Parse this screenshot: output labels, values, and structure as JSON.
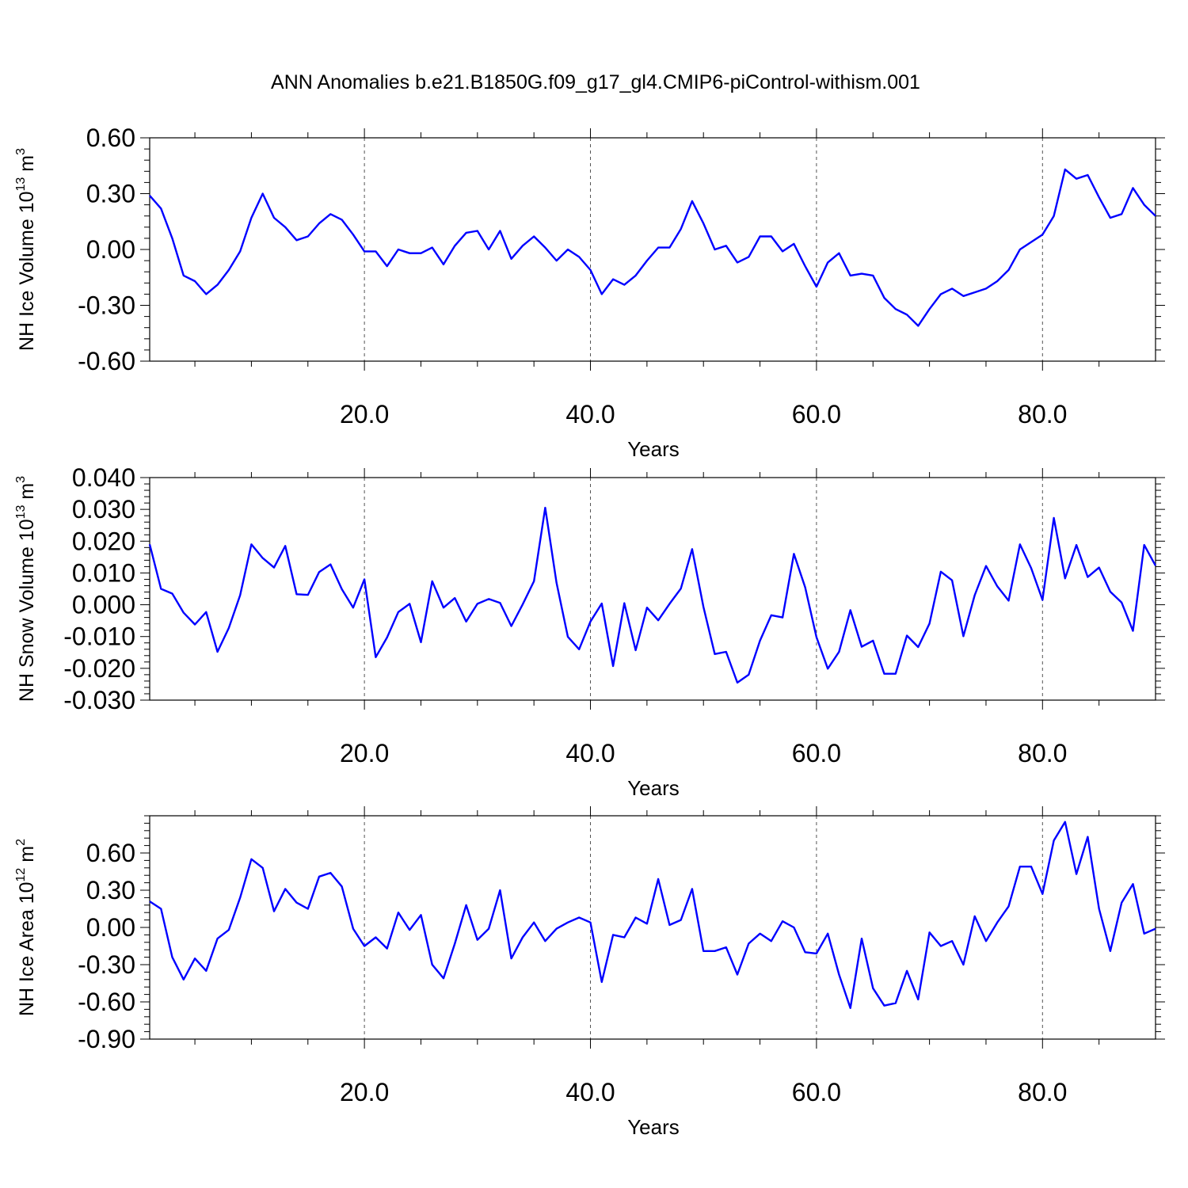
{
  "title": "ANN Anomalies b.e21.B1850G.f09_g17_gl4.CMIP6-piControl-withism.001",
  "colors": {
    "line": "#0000ff",
    "axis": "#000000",
    "grid": "#555555"
  },
  "chart_data": [
    {
      "type": "line",
      "ylabel": {
        "main": "NH Ice Volume 10",
        "sup": "13",
        "tail": " m",
        "unit_sup": "3"
      },
      "xlabel": "Years",
      "xlim": [
        1,
        90
      ],
      "ylim": [
        -0.6,
        0.6
      ],
      "xticks": [
        20,
        40,
        60,
        80
      ],
      "xtick_labels": [
        "20.0",
        "40.0",
        "60.0",
        "80.0"
      ],
      "yticks": [
        -0.6,
        -0.3,
        0.0,
        0.3,
        0.6
      ],
      "ytick_labels": [
        "-0.60",
        "-0.30",
        "0.00",
        "0.30",
        "0.60"
      ],
      "grid": "dashed vertical at major x ticks",
      "x": [
        1,
        2,
        3,
        4,
        5,
        6,
        7,
        8,
        9,
        10,
        11,
        12,
        13,
        14,
        15,
        16,
        17,
        18,
        19,
        20,
        21,
        22,
        23,
        24,
        25,
        26,
        27,
        28,
        29,
        30,
        31,
        32,
        33,
        34,
        35,
        36,
        37,
        38,
        39,
        40,
        41,
        42,
        43,
        44,
        45,
        46,
        47,
        48,
        49,
        50,
        51,
        52,
        53,
        54,
        55,
        56,
        57,
        58,
        59,
        60,
        61,
        62,
        63,
        64,
        65,
        66,
        67,
        68,
        69,
        70,
        71,
        72,
        73,
        74,
        75,
        76,
        77,
        78,
        79,
        80,
        81,
        82,
        83,
        84,
        85,
        86,
        87,
        88,
        89,
        90
      ],
      "y": [
        0.29,
        0.22,
        0.06,
        -0.14,
        -0.17,
        -0.24,
        -0.19,
        -0.11,
        -0.01,
        0.17,
        0.3,
        0.17,
        0.12,
        0.05,
        0.07,
        0.14,
        0.19,
        0.16,
        0.08,
        -0.01,
        -0.01,
        -0.09,
        0.0,
        -0.02,
        -0.02,
        0.01,
        -0.08,
        0.02,
        0.09,
        0.1,
        0.0,
        0.1,
        -0.05,
        0.02,
        0.07,
        0.01,
        -0.06,
        0.0,
        -0.04,
        -0.11,
        -0.24,
        -0.16,
        -0.19,
        -0.14,
        -0.06,
        0.01,
        0.01,
        0.11,
        0.26,
        0.14,
        0.0,
        0.02,
        -0.07,
        -0.04,
        0.07,
        0.07,
        -0.01,
        0.03,
        -0.09,
        -0.2,
        -0.07,
        -0.02,
        -0.14,
        -0.13,
        -0.14,
        -0.26,
        -0.32,
        -0.35,
        -0.41,
        -0.32,
        -0.24,
        -0.21,
        -0.25,
        -0.23,
        -0.21,
        -0.17,
        -0.11,
        0.0,
        0.04,
        0.08,
        0.18,
        0.43,
        0.38,
        0.4,
        0.28,
        0.17,
        0.19,
        0.33,
        0.24,
        0.18
      ]
    },
    {
      "type": "line",
      "ylabel": {
        "main": "NH Snow Volume 10",
        "sup": "13",
        "tail": " m",
        "unit_sup": "3"
      },
      "xlabel": "Years",
      "xlim": [
        1,
        90
      ],
      "ylim": [
        -0.03,
        0.04
      ],
      "xticks": [
        20,
        40,
        60,
        80
      ],
      "xtick_labels": [
        "20.0",
        "40.0",
        "60.0",
        "80.0"
      ],
      "yticks": [
        -0.03,
        -0.02,
        -0.01,
        0.0,
        0.01,
        0.02,
        0.03,
        0.04
      ],
      "ytick_labels": [
        "-0.030",
        "-0.020",
        "-0.010",
        "0.000",
        "0.010",
        "0.020",
        "0.030",
        "0.040"
      ],
      "grid": "dashed vertical at major x ticks",
      "x": [
        1,
        2,
        3,
        4,
        5,
        6,
        7,
        8,
        9,
        10,
        11,
        12,
        13,
        14,
        15,
        16,
        17,
        18,
        19,
        20,
        21,
        22,
        23,
        24,
        25,
        26,
        27,
        28,
        29,
        30,
        31,
        32,
        33,
        34,
        35,
        36,
        37,
        38,
        39,
        40,
        41,
        42,
        43,
        44,
        45,
        46,
        47,
        48,
        49,
        50,
        51,
        52,
        53,
        54,
        55,
        56,
        57,
        58,
        59,
        60,
        61,
        62,
        63,
        64,
        65,
        66,
        67,
        68,
        69,
        70,
        71,
        72,
        73,
        74,
        75,
        76,
        77,
        78,
        79,
        80,
        81,
        82,
        83,
        84,
        85,
        86,
        87,
        88,
        89,
        90
      ],
      "y": [
        0.019,
        0.005,
        0.0035,
        -0.0025,
        -0.0062,
        -0.0023,
        -0.0148,
        -0.0073,
        0.003,
        0.019,
        0.0147,
        0.0117,
        0.0185,
        0.0033,
        0.0031,
        0.0103,
        0.0127,
        0.0049,
        -0.0009,
        0.008,
        -0.0165,
        -0.0103,
        -0.0023,
        0.0003,
        -0.0118,
        0.0074,
        -0.0009,
        0.0021,
        -0.0053,
        0.0003,
        0.0018,
        0.0006,
        -0.0067,
        0.0001,
        0.0074,
        0.0305,
        0.0069,
        -0.0101,
        -0.014,
        -0.0053,
        0.0004,
        -0.0193,
        0.0005,
        -0.0143,
        -0.0009,
        -0.0049,
        0.0003,
        0.0051,
        0.0175,
        -0.0007,
        -0.0155,
        -0.0148,
        -0.0245,
        -0.022,
        -0.0113,
        -0.0033,
        -0.004,
        0.016,
        0.0055,
        -0.0102,
        -0.0201,
        -0.0148,
        -0.0017,
        -0.0132,
        -0.0113,
        -0.0217,
        -0.0217,
        -0.0097,
        -0.0133,
        -0.0059,
        0.0104,
        0.0077,
        -0.0099,
        0.003,
        0.0122,
        0.0058,
        0.0013,
        0.019,
        0.0115,
        0.0015,
        0.0273,
        0.0083,
        0.0188,
        0.0087,
        0.0117,
        0.0041,
        0.0007,
        -0.0082,
        0.0188,
        0.0123
      ]
    },
    {
      "type": "line",
      "ylabel": {
        "main": "NH Ice Area 10",
        "sup": "12",
        "tail": " m",
        "unit_sup": "2"
      },
      "xlabel": "Years",
      "xlim": [
        1,
        90
      ],
      "ylim": [
        -0.9,
        0.9
      ],
      "xticks": [
        20,
        40,
        60,
        80
      ],
      "xtick_labels": [
        "20.0",
        "40.0",
        "60.0",
        "80.0"
      ],
      "yticks": [
        -0.9,
        -0.6,
        -0.3,
        0.0,
        0.3,
        0.6
      ],
      "ytick_labels": [
        "-0.90",
        "-0.60",
        "-0.30",
        "0.00",
        "0.30",
        "0.60"
      ],
      "grid": "dashed vertical at major x ticks",
      "x": [
        1,
        2,
        3,
        4,
        5,
        6,
        7,
        8,
        9,
        10,
        11,
        12,
        13,
        14,
        15,
        16,
        17,
        18,
        19,
        20,
        21,
        22,
        23,
        24,
        25,
        26,
        27,
        28,
        29,
        30,
        31,
        32,
        33,
        34,
        35,
        36,
        37,
        38,
        39,
        40,
        41,
        42,
        43,
        44,
        45,
        46,
        47,
        48,
        49,
        50,
        51,
        52,
        53,
        54,
        55,
        56,
        57,
        58,
        59,
        60,
        61,
        62,
        63,
        64,
        65,
        66,
        67,
        68,
        69,
        70,
        71,
        72,
        73,
        74,
        75,
        76,
        77,
        78,
        79,
        80,
        81,
        82,
        83,
        84,
        85,
        86,
        87,
        88,
        89,
        90
      ],
      "y": [
        0.21,
        0.15,
        -0.24,
        -0.42,
        -0.25,
        -0.35,
        -0.09,
        -0.02,
        0.24,
        0.55,
        0.48,
        0.13,
        0.31,
        0.2,
        0.15,
        0.41,
        0.44,
        0.33,
        -0.01,
        -0.15,
        -0.08,
        -0.17,
        0.12,
        -0.02,
        0.1,
        -0.3,
        -0.41,
        -0.13,
        0.18,
        -0.1,
        -0.01,
        0.3,
        -0.25,
        -0.08,
        0.04,
        -0.11,
        -0.01,
        0.04,
        0.08,
        0.04,
        -0.44,
        -0.06,
        -0.08,
        0.08,
        0.03,
        0.39,
        0.02,
        0.06,
        0.31,
        -0.19,
        -0.19,
        -0.16,
        -0.38,
        -0.13,
        -0.05,
        -0.11,
        0.05,
        0.0,
        -0.2,
        -0.21,
        -0.05,
        -0.38,
        -0.65,
        -0.09,
        -0.49,
        -0.63,
        -0.61,
        -0.35,
        -0.58,
        -0.04,
        -0.15,
        -0.11,
        -0.3,
        0.09,
        -0.11,
        0.04,
        0.17,
        0.49,
        0.49,
        0.27,
        0.7,
        0.85,
        0.43,
        0.73,
        0.15,
        -0.19,
        0.2,
        0.35,
        -0.05,
        -0.01
      ]
    }
  ]
}
